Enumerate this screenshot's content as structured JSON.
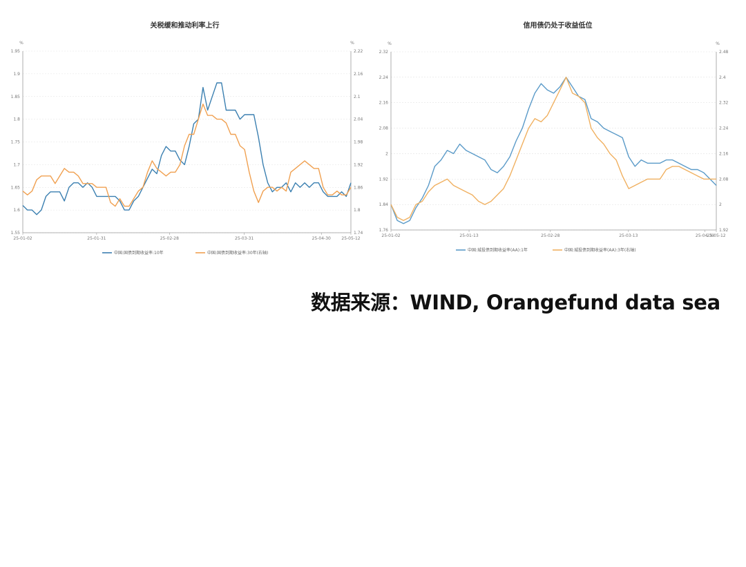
{
  "source": "数据来源：WIND, Orangefund data sea",
  "chart_data": [
    {
      "type": "line",
      "title": "关税缓和推动利率上行",
      "left_unit": "%",
      "right_unit": "%",
      "x_ticks": [
        "25-01-02",
        "25-01-31",
        "25-02-28",
        "25-03-31",
        "25-04-30",
        "25-05-12"
      ],
      "y_left": {
        "min": 1.55,
        "max": 1.95,
        "ticks": [
          "1.95",
          "1.9",
          "1.85",
          "1.8",
          "1.75",
          "1.7",
          "1.65",
          "1.6",
          "1.55"
        ]
      },
      "y_right": {
        "min": 1.74,
        "max": 2.22,
        "ticks": [
          "2.22",
          "2.16",
          "2.1",
          "2.04",
          "1.98",
          "1.92",
          "1.86",
          "1.8",
          "1.74"
        ]
      },
      "series": [
        {
          "name": "中国:国债到期收益率:10年",
          "color": "#3a7fb0",
          "axis": "left",
          "values": [
            1.61,
            1.6,
            1.6,
            1.59,
            1.6,
            1.63,
            1.64,
            1.64,
            1.64,
            1.62,
            1.65,
            1.66,
            1.66,
            1.65,
            1.66,
            1.65,
            1.63,
            1.63,
            1.63,
            1.63,
            1.63,
            1.62,
            1.6,
            1.6,
            1.62,
            1.63,
            1.65,
            1.67,
            1.69,
            1.68,
            1.72,
            1.74,
            1.73,
            1.73,
            1.71,
            1.7,
            1.74,
            1.79,
            1.8,
            1.87,
            1.82,
            1.85,
            1.88,
            1.88,
            1.82,
            1.82,
            1.82,
            1.8,
            1.81,
            1.81,
            1.81,
            1.76,
            1.7,
            1.66,
            1.64,
            1.65,
            1.65,
            1.66,
            1.64,
            1.66,
            1.65,
            1.66,
            1.65,
            1.66,
            1.66,
            1.64,
            1.63,
            1.63,
            1.63,
            1.64,
            1.63,
            1.66
          ]
        },
        {
          "name": "中国:国债到期收益率:30年(右轴)",
          "color": "#f0a050",
          "axis": "right",
          "values": [
            1.85,
            1.84,
            1.85,
            1.88,
            1.89,
            1.89,
            1.89,
            1.87,
            1.89,
            1.91,
            1.9,
            1.9,
            1.89,
            1.87,
            1.87,
            1.87,
            1.86,
            1.86,
            1.86,
            1.82,
            1.81,
            1.83,
            1.81,
            1.81,
            1.83,
            1.85,
            1.86,
            1.9,
            1.93,
            1.91,
            1.9,
            1.89,
            1.9,
            1.9,
            1.92,
            1.97,
            2.0,
            2.0,
            2.04,
            2.08,
            2.05,
            2.05,
            2.04,
            2.04,
            2.03,
            2.0,
            2.0,
            1.97,
            1.96,
            1.9,
            1.85,
            1.82,
            1.85,
            1.86,
            1.86,
            1.85,
            1.86,
            1.85,
            1.9,
            1.91,
            1.92,
            1.93,
            1.92,
            1.91,
            1.91,
            1.86,
            1.84,
            1.84,
            1.85,
            1.84,
            1.84,
            1.86
          ]
        }
      ]
    },
    {
      "type": "line",
      "title": "信用债仍处于收益低位",
      "left_unit": "%",
      "right_unit": "%",
      "x_ticks": [
        "25-01-02",
        "25-01-13",
        "25-02-28",
        "25-03-13",
        "25-04-30",
        "25-05-12"
      ],
      "y_left": {
        "min": 1.76,
        "max": 2.32,
        "ticks": [
          "2.32",
          "2.24",
          "2.16",
          "2.08",
          "2",
          "1.92",
          "1.84",
          "1.76"
        ]
      },
      "y_right": {
        "min": 1.92,
        "max": 2.48,
        "ticks": [
          "2.48",
          "2.4",
          "2.32",
          "2.24",
          "2.16",
          "2.08",
          "2",
          "1.92"
        ]
      },
      "series": [
        {
          "name": "中国:城投债到期收益率(AA):1年",
          "color": "#5a9ac8",
          "axis": "left",
          "values": [
            1.84,
            1.79,
            1.78,
            1.79,
            1.83,
            1.86,
            1.9,
            1.96,
            1.98,
            2.01,
            2.0,
            2.03,
            2.01,
            2.0,
            1.99,
            1.98,
            1.95,
            1.94,
            1.96,
            1.99,
            2.04,
            2.08,
            2.14,
            2.19,
            2.22,
            2.2,
            2.19,
            2.21,
            2.24,
            2.21,
            2.18,
            2.17,
            2.11,
            2.1,
            2.08,
            2.07,
            2.06,
            2.05,
            1.99,
            1.96,
            1.98,
            1.97,
            1.97,
            1.97,
            1.98,
            1.98,
            1.97,
            1.96,
            1.95,
            1.95,
            1.94,
            1.92,
            1.9
          ]
        },
        {
          "name": "中国:城投债到期收益率(AA):3年(右轴)",
          "color": "#f0b060",
          "axis": "right",
          "values": [
            2.0,
            1.96,
            1.95,
            1.96,
            2.0,
            2.01,
            2.04,
            2.06,
            2.07,
            2.08,
            2.06,
            2.05,
            2.04,
            2.03,
            2.01,
            2.0,
            2.01,
            2.03,
            2.05,
            2.09,
            2.14,
            2.19,
            2.24,
            2.27,
            2.26,
            2.28,
            2.32,
            2.36,
            2.4,
            2.35,
            2.34,
            2.32,
            2.24,
            2.21,
            2.19,
            2.16,
            2.14,
            2.09,
            2.05,
            2.06,
            2.07,
            2.08,
            2.08,
            2.08,
            2.11,
            2.12,
            2.12,
            2.11,
            2.1,
            2.09,
            2.08,
            2.08,
            2.08
          ]
        }
      ]
    }
  ]
}
